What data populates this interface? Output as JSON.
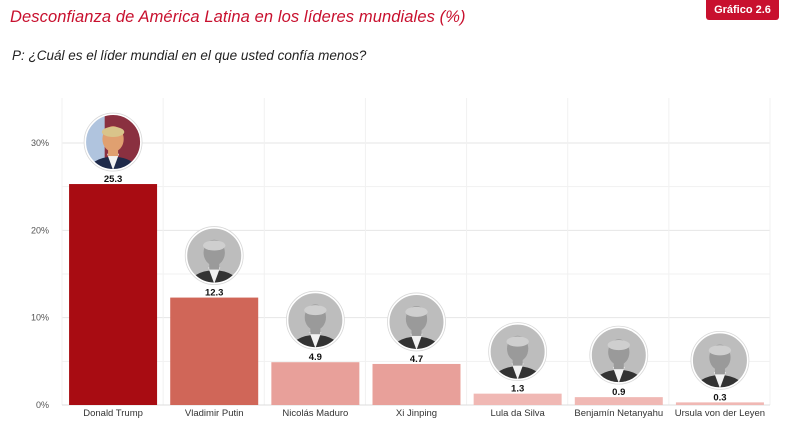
{
  "header": {
    "title": "Desconfianza de América Latina en los líderes mundiales (%)",
    "badge": "Gráfico 2.6",
    "question": "P: ¿Cuál es el líder mundial en el que usted confía menos?"
  },
  "chart_data": {
    "type": "bar",
    "title": "Desconfianza de América Latina en los líderes mundiales (%)",
    "xlabel": "",
    "ylabel": "",
    "ylim": [
      0,
      30
    ],
    "yticks": [
      0,
      10,
      20,
      30
    ],
    "ytick_labels": [
      "0%",
      "10%",
      "20%",
      "30%"
    ],
    "grid": true,
    "categories": [
      "Donald Trump",
      "Vladimir Putin",
      "Nicolás Maduro",
      "Xi Jinping",
      "Lula da Silva",
      "Benjamín Netanyahu",
      "Ursula von der Leyen"
    ],
    "values": [
      25.3,
      12.3,
      4.9,
      4.7,
      1.3,
      0.9,
      0.3
    ],
    "value_labels": [
      "25.3",
      "12.3",
      "4.9",
      "4.7",
      "1.3",
      "0.9",
      "0.3"
    ],
    "bar_colors": [
      "#a80c12",
      "#d06658",
      "#e8a09a",
      "#e8a09a",
      "#f0b8b4",
      "#f0b8b4",
      "#f0b8b4"
    ],
    "portrait_icons": [
      "trump-portrait-icon",
      "putin-portrait-icon",
      "maduro-portrait-icon",
      "xi-portrait-icon",
      "lula-portrait-icon",
      "netanyahu-portrait-icon",
      "von-der-leyen-portrait-icon"
    ]
  }
}
